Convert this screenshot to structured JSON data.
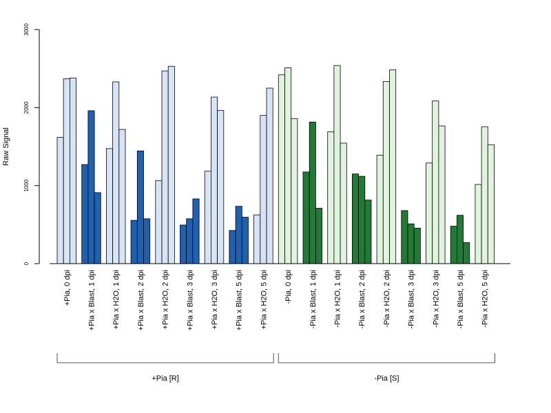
{
  "chart_data": {
    "type": "bar",
    "ylabel": "Raw Signal",
    "ylim": [
      0,
      3000
    ],
    "yticks": [
      "0",
      "1000",
      "2000",
      "3000"
    ],
    "grid": false,
    "bars_per_group": 3,
    "colors": {
      "R_light": "#d6e4f5",
      "R_dark": "#2060b0",
      "S_light": "#e0f3dc",
      "S_dark": "#217a35",
      "outline": "#000000"
    },
    "groups": [
      {
        "label": "+Pia, 0 dpi",
        "values": [
          1620,
          2370,
          2380
        ],
        "shade": "R_light"
      },
      {
        "label": "+Pia x Blast, 1 dpi",
        "values": [
          1270,
          1960,
          910
        ],
        "shade": "R_dark"
      },
      {
        "label": "+Pia x H2O, 1 dpi",
        "values": [
          1475,
          2330,
          1720
        ],
        "shade": "R_light"
      },
      {
        "label": "+Pia x Blast, 2 dpi",
        "values": [
          555,
          1445,
          575
        ],
        "shade": "R_dark"
      },
      {
        "label": "+Pia x H2O, 2 dpi",
        "values": [
          1065,
          2470,
          2530
        ],
        "shade": "R_light"
      },
      {
        "label": "+Pia x Blast, 3 dpi",
        "values": [
          495,
          575,
          830
        ],
        "shade": "R_dark"
      },
      {
        "label": "+Pia x H2O, 3 dpi",
        "values": [
          1185,
          2135,
          1965
        ],
        "shade": "R_light"
      },
      {
        "label": "+Pia x Blast, 5 dpi",
        "values": [
          425,
          735,
          595
        ],
        "shade": "R_dark"
      },
      {
        "label": "+Pia x H2O, 5 dpi",
        "values": [
          625,
          1900,
          2250
        ],
        "shade": "R_light"
      },
      {
        "label": "-Pia, 0 dpi",
        "values": [
          2420,
          2510,
          1860
        ],
        "shade": "S_light"
      },
      {
        "label": "-Pia x Blast, 1 dpi",
        "values": [
          1175,
          1815,
          710
        ],
        "shade": "S_dark"
      },
      {
        "label": "-Pia x H2O, 1 dpi",
        "values": [
          1690,
          2540,
          1545
        ],
        "shade": "S_light"
      },
      {
        "label": "-Pia x Blast, 2 dpi",
        "values": [
          1150,
          1120,
          815
        ],
        "shade": "S_dark"
      },
      {
        "label": "-Pia x H2O, 2 dpi",
        "values": [
          1390,
          2335,
          2485
        ],
        "shade": "S_light"
      },
      {
        "label": "-Pia x Blast, 3 dpi",
        "values": [
          680,
          510,
          455
        ],
        "shade": "S_dark"
      },
      {
        "label": "-Pia x H2O, 3 dpi",
        "values": [
          1290,
          2085,
          1765
        ],
        "shade": "S_light"
      },
      {
        "label": "-Pia x Blast, 5 dpi",
        "values": [
          480,
          620,
          270
        ],
        "shade": "S_dark"
      },
      {
        "label": "-Pia x H2O, 5 dpi",
        "values": [
          1015,
          1755,
          1525
        ],
        "shade": "S_light"
      }
    ],
    "brackets": [
      {
        "label": "+Pia [R]",
        "first_group": 0,
        "last_group": 8
      },
      {
        "label": "-Pia [S]",
        "first_group": 9,
        "last_group": 17
      }
    ]
  }
}
